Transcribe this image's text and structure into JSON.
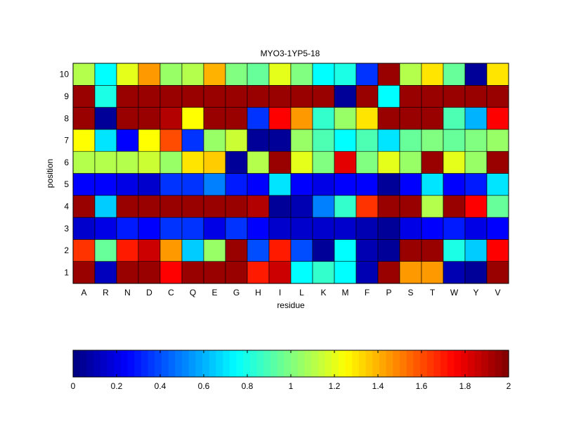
{
  "chart_data": {
    "type": "heatmap",
    "title": "MYO3-1YP5-18",
    "xlabel": "residue",
    "ylabel": "position",
    "x_categories": [
      "A",
      "R",
      "N",
      "D",
      "C",
      "Q",
      "E",
      "G",
      "H",
      "I",
      "L",
      "K",
      "M",
      "F",
      "P",
      "S",
      "T",
      "W",
      "Y",
      "V"
    ],
    "y_categories": [
      "1",
      "2",
      "3",
      "4",
      "5",
      "6",
      "7",
      "8",
      "9",
      "10"
    ],
    "colormap": "jet",
    "clim": [
      0,
      2
    ],
    "colorbar_location": "bottom",
    "colorbar_ticks": [
      "0",
      "0.2",
      "0.4",
      "0.6",
      "0.8",
      "1",
      "1.2",
      "1.4",
      "1.6",
      "1.8",
      "2"
    ],
    "values": [
      [
        1.95,
        0.12,
        1.95,
        1.95,
        1.75,
        1.95,
        1.95,
        1.95,
        1.7,
        1.85,
        0.75,
        0.85,
        0.75,
        0.1,
        1.95,
        1.45,
        1.45,
        0.1,
        0.05,
        1.95
      ],
      [
        1.65,
        0.95,
        1.7,
        1.85,
        1.45,
        0.65,
        1.05,
        1.95,
        0.4,
        1.7,
        0.4,
        0.05,
        0.75,
        0.1,
        0.05,
        1.95,
        1.95,
        0.8,
        0.65,
        1.75
      ],
      [
        0.15,
        0.2,
        0.3,
        0.25,
        0.35,
        0.35,
        0.2,
        0.35,
        0.25,
        0.15,
        0.15,
        0.15,
        0.15,
        0.1,
        0.05,
        0.2,
        0.25,
        0.3,
        0.2,
        0.25
      ],
      [
        1.95,
        0.65,
        1.95,
        1.95,
        1.95,
        1.95,
        1.95,
        1.95,
        1.9,
        0.05,
        0.1,
        0.5,
        0.85,
        1.65,
        1.95,
        1.95,
        1.1,
        1.95,
        1.75,
        0.95
      ],
      [
        0.25,
        0.25,
        0.2,
        0.15,
        0.35,
        0.35,
        0.5,
        0.3,
        0.25,
        0.7,
        0.25,
        0.2,
        0.25,
        0.25,
        0.05,
        0.25,
        0.7,
        0.25,
        0.3,
        0.7
      ],
      [
        1.1,
        1.1,
        1.1,
        1.15,
        1.05,
        1.3,
        1.35,
        0.05,
        1.1,
        1.95,
        1.2,
        1.0,
        1.8,
        1.0,
        1.2,
        1.05,
        1.95,
        1.2,
        1.05,
        1.95
      ],
      [
        1.25,
        0.7,
        0.25,
        1.25,
        1.6,
        0.35,
        1.05,
        1.15,
        0.05,
        0.05,
        1.05,
        0.9,
        0.75,
        0.9,
        0.7,
        0.95,
        1.0,
        0.95,
        1.0,
        1.05
      ],
      [
        1.95,
        0.05,
        1.95,
        1.95,
        1.9,
        1.25,
        1.95,
        1.95,
        0.35,
        1.75,
        1.45,
        0.85,
        1.05,
        1.3,
        1.95,
        1.95,
        1.95,
        0.9,
        0.6,
        1.75
      ],
      [
        1.95,
        0.8,
        1.95,
        1.95,
        1.95,
        1.95,
        1.95,
        1.95,
        1.95,
        1.95,
        1.95,
        1.95,
        0.05,
        1.95,
        0.75,
        1.95,
        1.95,
        1.95,
        1.95,
        1.95
      ],
      [
        1.1,
        0.75,
        1.2,
        1.45,
        1.05,
        1.1,
        1.4,
        1.0,
        0.95,
        1.2,
        1.0,
        0.75,
        0.8,
        0.35,
        1.95,
        1.1,
        1.3,
        0.95,
        0.05,
        1.3
      ]
    ]
  }
}
